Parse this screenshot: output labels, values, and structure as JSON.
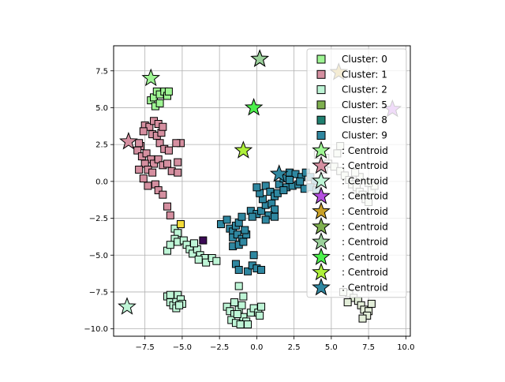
{
  "chart_data": {
    "type": "scatter",
    "title": "",
    "xlabel": "",
    "ylabel": "",
    "xlim": [
      -9.6,
      10.3
    ],
    "ylim": [
      -10.5,
      9.2
    ],
    "grid": true,
    "legend_position": "top-right",
    "xticks": [
      -7.5,
      -5.0,
      -2.5,
      0.0,
      2.5,
      5.0,
      7.5,
      10.0
    ],
    "yticks": [
      -10.0,
      -7.5,
      -5.0,
      -2.5,
      0.0,
      2.5,
      5.0,
      7.5
    ],
    "xtick_labels": [
      "−7.5",
      "−5.0",
      "−2.5",
      "0.0",
      "2.5",
      "5.0",
      "7.5",
      "10.0"
    ],
    "ytick_labels": [
      "−10.0",
      "−7.5",
      "−5.0",
      "−2.5",
      "0.0",
      "2.5",
      "5.0",
      "7.5"
    ],
    "series": [
      {
        "name": "Cluster: 0",
        "color": "#9ef593",
        "marker": "square",
        "legend": true,
        "points": [
          [
            -7.1,
            5.5
          ],
          [
            -6.9,
            5.7
          ],
          [
            -6.7,
            6.1
          ],
          [
            -6.5,
            5.9
          ],
          [
            -6.2,
            6.1
          ],
          [
            -6.0,
            5.8
          ],
          [
            -5.9,
            6.1
          ],
          [
            -6.8,
            5.1
          ],
          [
            -6.5,
            5.3
          ]
        ]
      },
      {
        "name": "Cluster: 1",
        "color": "#d58fa0",
        "marker": "square",
        "legend": true,
        "points": [
          [
            -7.5,
            3.8
          ],
          [
            -7.2,
            3.7
          ],
          [
            -6.9,
            4.1
          ],
          [
            -6.6,
            3.9
          ],
          [
            -7.0,
            3.2
          ],
          [
            -6.7,
            3.1
          ],
          [
            -6.4,
            3.3
          ],
          [
            -7.8,
            2.4
          ],
          [
            -8.0,
            2.1
          ],
          [
            -7.7,
            1.7
          ],
          [
            -7.4,
            1.9
          ],
          [
            -7.1,
            1.5
          ],
          [
            -6.9,
            1.2
          ],
          [
            -6.6,
            1.5
          ],
          [
            -6.3,
            1.1
          ],
          [
            -6.0,
            1.2
          ],
          [
            -6.5,
            2.6
          ],
          [
            -6.2,
            2.2
          ],
          [
            -5.9,
            2.1
          ],
          [
            -7.5,
            1.2
          ],
          [
            -7.3,
            0.8
          ],
          [
            -7.9,
            0.8
          ],
          [
            -7.6,
            0.2
          ],
          [
            -7.3,
            -0.3
          ],
          [
            -7.0,
            0.6
          ],
          [
            -6.8,
            -0.2
          ],
          [
            -6.6,
            -0.6
          ],
          [
            -6.3,
            -0.9
          ],
          [
            -5.7,
            0.7
          ],
          [
            -5.3,
            0.6
          ],
          [
            -5.3,
            1.3
          ],
          [
            -5.1,
            2.6
          ],
          [
            -5.4,
            2.6
          ],
          [
            -6.0,
            -1.7
          ],
          [
            -5.8,
            -2.3
          ],
          [
            -7.6,
            3.4
          ],
          [
            -6.3,
            3.7
          ],
          [
            -7.9,
            2.6
          ]
        ]
      },
      {
        "name": "Cluster: 2",
        "color": "#bef5d6",
        "marker": "square",
        "legend": true,
        "points": [
          [
            -5.5,
            -3.2
          ],
          [
            -5.3,
            -3.5
          ],
          [
            -5.5,
            -3.9
          ],
          [
            -5.3,
            -4.1
          ],
          [
            -4.9,
            -4.0
          ],
          [
            -4.7,
            -4.3
          ],
          [
            -4.5,
            -4.6
          ],
          [
            -4.3,
            -4.9
          ],
          [
            -4.0,
            -4.6
          ],
          [
            -3.8,
            -5.0
          ],
          [
            -3.5,
            -5.2
          ],
          [
            -3.4,
            -5.5
          ],
          [
            -3.0,
            -5.2
          ],
          [
            -2.7,
            -5.4
          ],
          [
            -4.2,
            -4.2
          ],
          [
            -3.9,
            -5.3
          ],
          [
            -6.0,
            -4.7
          ],
          [
            -5.8,
            -4.3
          ],
          [
            -6.0,
            -7.8
          ],
          [
            -5.8,
            -8.2
          ],
          [
            -5.6,
            -8.4
          ],
          [
            -5.4,
            -8.0
          ],
          [
            -5.3,
            -7.7
          ],
          [
            -5.1,
            -8.0
          ],
          [
            -5.0,
            -8.3
          ],
          [
            -5.4,
            -8.6
          ],
          [
            -5.8,
            -7.7
          ],
          [
            -5.2,
            -8.4
          ],
          [
            -2.0,
            -8.5
          ],
          [
            -1.8,
            -8.8
          ],
          [
            -1.5,
            -9.0
          ],
          [
            -1.2,
            -8.7
          ],
          [
            -1.0,
            -8.4
          ],
          [
            -0.9,
            -9.2
          ],
          [
            -0.7,
            -9.5
          ],
          [
            -0.4,
            -8.9
          ],
          [
            -0.2,
            -8.6
          ],
          [
            0.1,
            -8.9
          ],
          [
            0.3,
            -8.5
          ],
          [
            -1.7,
            -9.4
          ],
          [
            -1.4,
            -9.6
          ],
          [
            -1.1,
            -9.7
          ],
          [
            -0.6,
            -9.7
          ],
          [
            -1.2,
            -7.1
          ],
          [
            -0.9,
            -7.8
          ],
          [
            -1.5,
            -8.2
          ],
          [
            0.2,
            -9.1
          ],
          [
            -1.3,
            -9.0
          ]
        ]
      },
      {
        "name": "Cluster: 5",
        "color": "#7fb04f",
        "marker": "square",
        "legend": true,
        "points": []
      },
      {
        "name": "Cluster: 8",
        "color": "#1f8070",
        "marker": "square",
        "legend": true,
        "points": [
          [
            -5.1,
            -2.9
          ]
        ]
      },
      {
        "name": "Cluster: 9",
        "color": "#2f87a0",
        "marker": "square",
        "legend": true,
        "points": [
          [
            -2.4,
            -2.9
          ],
          [
            -2.0,
            -2.6
          ],
          [
            -1.8,
            -3.2
          ],
          [
            -1.6,
            -3.4
          ],
          [
            -1.4,
            -3.0
          ],
          [
            -1.2,
            -2.8
          ],
          [
            -1.0,
            -2.4
          ],
          [
            -1.6,
            -3.8
          ],
          [
            -1.3,
            -3.6
          ],
          [
            -1.0,
            -3.9
          ],
          [
            -0.7,
            -3.6
          ],
          [
            -1.6,
            -4.4
          ],
          [
            -1.2,
            -4.3
          ],
          [
            -0.9,
            -4.1
          ],
          [
            -1.4,
            -5.6
          ],
          [
            -1.2,
            -6.0
          ],
          [
            -0.6,
            -6.1
          ],
          [
            -0.3,
            -5.7
          ],
          [
            0.0,
            -5.9
          ],
          [
            0.3,
            -6.0
          ],
          [
            -0.2,
            -5.0
          ],
          [
            -0.4,
            -2.0
          ],
          [
            0.0,
            -2.2
          ],
          [
            0.3,
            -2.0
          ],
          [
            0.6,
            -1.6
          ],
          [
            0.4,
            -1.2
          ],
          [
            0.2,
            -0.8
          ],
          [
            0.0,
            -0.4
          ],
          [
            0.6,
            -0.3
          ],
          [
            0.9,
            -0.7
          ],
          [
            1.2,
            -1.0
          ],
          [
            1.4,
            -0.8
          ],
          [
            1.0,
            -1.5
          ],
          [
            1.2,
            -1.9
          ],
          [
            0.8,
            -2.3
          ],
          [
            1.2,
            -2.4
          ],
          [
            0.6,
            -2.6
          ],
          [
            1.5,
            -0.2
          ],
          [
            1.8,
            0.2
          ],
          [
            2.2,
            0.6
          ],
          [
            2.6,
            0.5
          ],
          [
            3.0,
            0.3
          ],
          [
            3.3,
            0.6
          ],
          [
            3.6,
            0.3
          ],
          [
            3.9,
            0.0
          ],
          [
            2.0,
            -0.4
          ],
          [
            2.4,
            -0.3
          ],
          [
            2.8,
            -0.2
          ],
          [
            3.2,
            -0.5
          ],
          [
            3.6,
            -0.4
          ],
          [
            4.0,
            -0.6
          ],
          [
            2.9,
            0.0
          ],
          [
            2.2,
            0.1
          ],
          [
            1.8,
            -0.6
          ],
          [
            -0.3,
            -2.4
          ],
          [
            -0.8,
            -3.3
          ]
        ]
      },
      {
        "name": "",
        "color": "#3b0a55",
        "marker": "square",
        "legend": false,
        "points": [
          [
            -3.6,
            -4.0
          ]
        ]
      },
      {
        "name": "",
        "color": "#f5dc3a",
        "marker": "square",
        "legend": false,
        "points": [
          [
            -5.1,
            -2.9
          ]
        ]
      },
      {
        "name": "",
        "color": "#e3eed9",
        "marker": "square",
        "legend": false,
        "points": [
          [
            4.1,
            1.8
          ],
          [
            4.6,
            1.6
          ],
          [
            4.8,
            1.2
          ],
          [
            5.2,
            1.0
          ],
          [
            5.6,
            0.7
          ],
          [
            5.9,
            0.4
          ],
          [
            6.2,
            0.1
          ],
          [
            6.4,
            -0.2
          ],
          [
            6.7,
            -0.4
          ],
          [
            6.9,
            -0.7
          ],
          [
            7.1,
            -0.9
          ],
          [
            7.3,
            -1.2
          ],
          [
            7.5,
            -1.4
          ],
          [
            7.7,
            -0.6
          ],
          [
            7.9,
            -0.3
          ],
          [
            7.5,
            -0.1
          ],
          [
            6.9,
            0.3
          ],
          [
            6.6,
            0.6
          ],
          [
            5.4,
            1.9
          ],
          [
            5.6,
            2.4
          ],
          [
            4.5,
            0.8
          ],
          [
            6.2,
            -7.6
          ],
          [
            6.5,
            -7.9
          ],
          [
            6.8,
            -8.1
          ],
          [
            7.0,
            -8.4
          ],
          [
            7.2,
            -8.7
          ],
          [
            7.5,
            -8.8
          ],
          [
            7.4,
            -9.1
          ],
          [
            7.1,
            -9.3
          ],
          [
            5.8,
            -7.5
          ],
          [
            6.1,
            -8.2
          ],
          [
            7.7,
            -8.3
          ]
        ]
      }
    ],
    "centroids": {
      "label": ": Centroid",
      "marker": "star",
      "items": [
        {
          "color": "#9ef593",
          "x": -7.1,
          "y": 7.0
        },
        {
          "color": "#d58fa0",
          "x": -8.6,
          "y": 2.7
        },
        {
          "color": "#bef5d6",
          "x": -8.7,
          "y": -8.5
        },
        {
          "color": "#b44fe0",
          "x": 9.1,
          "y": 4.9
        },
        {
          "color": "#c8a028",
          "x": 5.5,
          "y": 7.4
        },
        {
          "color": "#7fb04f",
          "x": 0.2,
          "y": 8.3
        },
        {
          "color": "#9ad09a",
          "x": 0.2,
          "y": 8.3
        },
        {
          "color": "#4cf04c",
          "x": -0.2,
          "y": 5.0
        },
        {
          "color": "#aef03a",
          "x": -0.9,
          "y": 2.1
        },
        {
          "color": "#2f87a0",
          "x": 1.5,
          "y": 0.5
        }
      ]
    }
  }
}
